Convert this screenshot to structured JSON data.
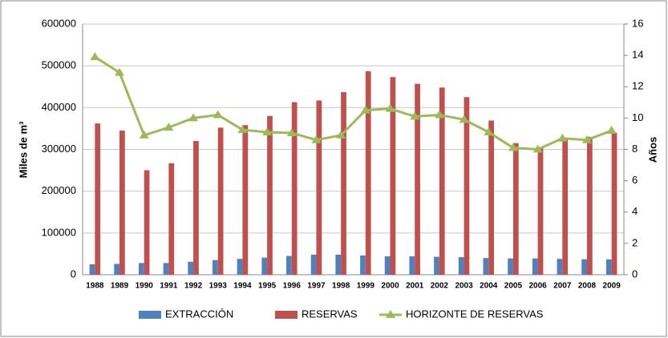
{
  "chart_data": {
    "type": "bar-line",
    "categories": [
      "1988",
      "1989",
      "1990",
      "1991",
      "1992",
      "1993",
      "1994",
      "1995",
      "1996",
      "1997",
      "1998",
      "1999",
      "2000",
      "2001",
      "2002",
      "2003",
      "2004",
      "2005",
      "2006",
      "2007",
      "2008",
      "2009"
    ],
    "ylabel": "Miles de m³",
    "y2label": "Años",
    "ylim": [
      0,
      600000
    ],
    "yticks": [
      0,
      100000,
      200000,
      300000,
      400000,
      500000,
      600000
    ],
    "y2lim": [
      0,
      16
    ],
    "y2ticks": [
      0,
      2,
      4,
      6,
      8,
      10,
      12,
      14,
      16
    ],
    "grid": true,
    "legend": "bottom",
    "series": [
      {
        "name": "EXTRACCIÓN",
        "color": "#4f81bd",
        "type": "bar",
        "values": [
          25000,
          26000,
          28000,
          28000,
          31000,
          35000,
          38000,
          41000,
          45000,
          48000,
          48000,
          46000,
          44000,
          44000,
          43000,
          42000,
          40000,
          39000,
          39000,
          38000,
          37000,
          37000
        ]
      },
      {
        "name": "RESERVAS",
        "color": "#c0504d",
        "type": "bar",
        "values": [
          362000,
          345000,
          250000,
          267000,
          320000,
          352000,
          358000,
          380000,
          413000,
          417000,
          437000,
          487000,
          473000,
          457000,
          448000,
          425000,
          369000,
          315000,
          305000,
          328000,
          330000,
          340000
        ]
      },
      {
        "name": "HORIZONTE DE RESERVAS",
        "color": "#9bbb59",
        "type": "line",
        "axis": "y2",
        "values": [
          13.9,
          12.9,
          8.9,
          9.4,
          10.0,
          10.2,
          9.25,
          9.1,
          9.05,
          8.6,
          8.9,
          10.5,
          10.6,
          10.1,
          10.2,
          9.9,
          9.1,
          8.1,
          8.0,
          8.7,
          8.6,
          9.2
        ]
      }
    ]
  }
}
